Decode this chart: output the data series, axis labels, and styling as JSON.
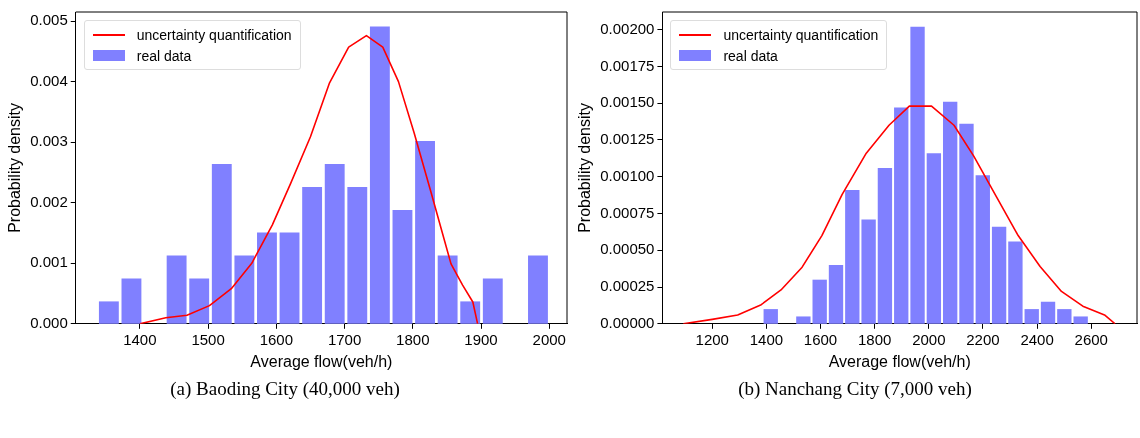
{
  "chart_data": [
    {
      "type": "histogram",
      "xlabel": "Average flow(veh/h)",
      "ylabel": "Probability density",
      "legend": "top left",
      "grid": false,
      "annotations": [
        "(a)  Baoding City (40,000 veh)"
      ],
      "xlim": [
        1306,
        2026
      ],
      "xticks": [
        1400,
        1500,
        1600,
        1700,
        1800,
        1900,
        2000
      ],
      "ylim": [
        0,
        0.00515
      ],
      "yticks": [
        {
          "value": 0,
          "label": "0.000"
        },
        {
          "value": 0.001,
          "label": "0.001"
        },
        {
          "value": 0.002,
          "label": "0.002"
        },
        {
          "value": 0.003,
          "label": "0.003"
        },
        {
          "value": 0.004,
          "label": "0.004"
        },
        {
          "value": 0.005,
          "label": "0.005"
        }
      ],
      "series": [
        {
          "name": "uncertainty quantification",
          "type": "line",
          "color": "#ff0000",
          "x": [
            1400,
            1438,
            1469,
            1502,
            1534,
            1564,
            1594,
            1621,
            1650,
            1678,
            1706,
            1732,
            1756,
            1779,
            1802,
            1827,
            1856,
            1873,
            1888,
            1895
          ],
          "values": [
            0,
            0.0001,
            0.00014,
            0.0003,
            0.00058,
            0.001,
            0.00163,
            0.00232,
            0.00309,
            0.00398,
            0.00457,
            0.00476,
            0.00457,
            0.004,
            0.00315,
            0.00216,
            0.00099,
            0.00064,
            0.00036,
            0
          ]
        },
        {
          "name": "real data",
          "color": "#8080ff",
          "bins": [
            1338,
            1371.1,
            1404.2,
            1437.3,
            1470.4,
            1503.5,
            1536.6,
            1569.7,
            1602.8,
            1635.9,
            1669,
            1702.1,
            1735.2,
            1768.3,
            1801.4,
            1834.5,
            1867.6,
            1900.7,
            1933.8,
            1966.9,
            2000
          ],
          "values": [
            0.00037,
            0.00075,
            0,
            0.00113,
            0.00075,
            0.00264,
            0.00113,
            0.00151,
            0.00151,
            0.00226,
            0.00264,
            0.00226,
            0.00491,
            0.00188,
            0.00302,
            0.00113,
            0.00037,
            0.00075,
            0,
            0.00113
          ]
        }
      ]
    },
    {
      "type": "histogram",
      "xlabel": "Average flow(veh/h)",
      "ylabel": "Probability density",
      "legend": "top left",
      "grid": false,
      "annotations": [
        "(b)  Nanchang City (7,000 veh)"
      ],
      "xlim": [
        1016,
        2769
      ],
      "xticks": [
        1200,
        1400,
        1600,
        1800,
        2000,
        2200,
        2400,
        2600
      ],
      "ylim": [
        0,
        0.00212
      ],
      "yticks": [
        {
          "value": 0,
          "label": "0.00000"
        },
        {
          "value": 0.00025,
          "label": "0.00025"
        },
        {
          "value": 0.0005,
          "label": "0.00050"
        },
        {
          "value": 0.00075,
          "label": "0.00075"
        },
        {
          "value": 0.001,
          "label": "0.00100"
        },
        {
          "value": 0.00125,
          "label": "0.00125"
        },
        {
          "value": 0.0015,
          "label": "0.00150"
        },
        {
          "value": 0.00175,
          "label": "0.00175"
        },
        {
          "value": 0.002,
          "label": "0.00200"
        }
      ],
      "series": [
        {
          "name": "uncertainty quantification",
          "type": "line",
          "color": "#ff0000",
          "x": [
            1093,
            1200,
            1294,
            1381,
            1454,
            1532,
            1605,
            1680,
            1769,
            1853,
            1928,
            2010,
            2093,
            2166,
            2251,
            2330,
            2411,
            2490,
            2569,
            2649,
            2688
          ],
          "values": [
            0,
            3e-05,
            6e-05,
            0.00013,
            0.00023,
            0.000385,
            0.0006,
            0.00088,
            0.00116,
            0.00135,
            0.00148,
            0.00148,
            0.00135,
            0.00114,
            0.00086,
            0.0006,
            0.00039,
            0.00022,
            0.00012,
            6e-05,
            0
          ]
        },
        {
          "name": "real data",
          "color": "#8080ff",
          "bins": [
            1386,
            1446.25,
            1506.5,
            1566.75,
            1627,
            1687.25,
            1747.5,
            1807.75,
            1868,
            1928.25,
            1988.5,
            2048.75,
            2109,
            2169.25,
            2229.5,
            2289.75,
            2350,
            2410.25,
            2470.5,
            2530.75,
            2591
          ],
          "values": [
            0.0001,
            0,
            5e-05,
            0.0003,
            0.0004,
            0.00091,
            0.00071,
            0.00106,
            0.00147,
            0.00202,
            0.00116,
            0.00151,
            0.00136,
            0.00101,
            0.00066,
            0.00056,
            0.0001,
            0.00015,
            0.0001,
            5e-05
          ]
        }
      ]
    }
  ]
}
